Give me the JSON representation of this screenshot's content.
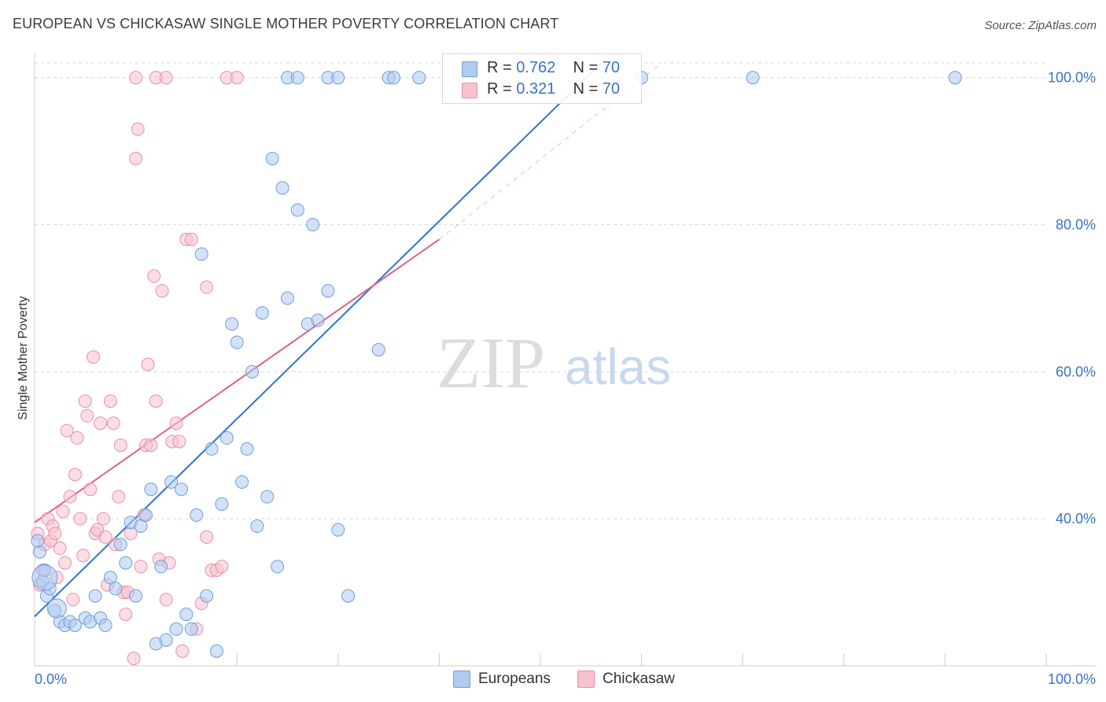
{
  "header": {
    "title": "EUROPEAN VS CHICKASAW SINGLE MOTHER POVERTY CORRELATION CHART",
    "source": "Source: ZipAtlas.com"
  },
  "watermark": {
    "zip": "ZIP",
    "atlas": "atlas"
  },
  "legend": {
    "rows": [
      {
        "r_label": "R =",
        "r_value": "0.762",
        "n_label": "N =",
        "n_value": "70"
      },
      {
        "r_label": "R =",
        "r_value": "0.321",
        "n_label": "N =",
        "n_value": "70"
      }
    ]
  },
  "bottom_legend": {
    "europeans": "Europeans",
    "chickasaw": "Chickasaw"
  },
  "colors": {
    "blue_fill": "#aecbf0",
    "blue_stroke": "#6f9fdc",
    "blue_line": "#2e72d2",
    "pink_fill": "#f7c1d0",
    "pink_stroke": "#e890a8",
    "pink_line": "#e0608a",
    "axis_label": "#3a72c4",
    "grid": "#d9d9d9"
  },
  "chart_data": {
    "type": "scatter",
    "title": "EUROPEAN VS CHICKASAW SINGLE MOTHER POVERTY CORRELATION CHART",
    "xlabel": "",
    "ylabel": "Single Mother Poverty",
    "xlim": [
      0,
      100
    ],
    "ylim": [
      20,
      102
    ],
    "x_tick_labels": [
      "0.0%",
      "100.0%"
    ],
    "y_tick_labels": [
      "40.0%",
      "60.0%",
      "80.0%",
      "100.0%"
    ],
    "y_ticks": [
      40,
      60,
      80,
      100
    ],
    "grid": true,
    "series": [
      {
        "name": "Europeans",
        "r": 0.762,
        "n": 70,
        "trend": {
          "x": [
            0,
            56
          ],
          "y": [
            26.7,
            102
          ]
        },
        "points": [
          [
            0.5,
            35.5
          ],
          [
            0.8,
            31.5
          ],
          [
            1,
            33
          ],
          [
            1.2,
            29.5
          ],
          [
            1.5,
            30.5
          ],
          [
            2,
            27.5
          ],
          [
            2.5,
            26
          ],
          [
            3,
            25.5
          ],
          [
            3.5,
            26
          ],
          [
            4,
            25.5
          ],
          [
            5,
            26.5
          ],
          [
            5.5,
            26
          ],
          [
            6,
            29.5
          ],
          [
            6.5,
            26.5
          ],
          [
            7,
            25.5
          ],
          [
            7.5,
            32
          ],
          [
            8,
            30.5
          ],
          [
            8.5,
            36.5
          ],
          [
            9,
            34
          ],
          [
            9.5,
            39.5
          ],
          [
            10,
            29.5
          ],
          [
            10.5,
            39
          ],
          [
            11,
            40.5
          ],
          [
            11.5,
            44
          ],
          [
            12,
            23
          ],
          [
            12.5,
            33.5
          ],
          [
            13,
            23.5
          ],
          [
            13.5,
            45
          ],
          [
            14,
            25
          ],
          [
            14.5,
            44
          ],
          [
            15,
            27
          ],
          [
            15.5,
            25
          ],
          [
            16,
            40.5
          ],
          [
            16.5,
            76
          ],
          [
            17,
            29.5
          ],
          [
            17.5,
            49.5
          ],
          [
            18,
            22
          ],
          [
            18.5,
            42
          ],
          [
            19,
            51
          ],
          [
            19.5,
            66.5
          ],
          [
            20,
            64
          ],
          [
            20.5,
            45
          ],
          [
            21,
            49.5
          ],
          [
            21.5,
            60
          ],
          [
            22,
            39
          ],
          [
            22.5,
            68
          ],
          [
            23,
            43
          ],
          [
            23.5,
            89
          ],
          [
            24,
            33.5
          ],
          [
            24.5,
            85
          ],
          [
            25,
            70
          ],
          [
            26,
            82
          ],
          [
            27,
            66.5
          ],
          [
            27.5,
            80
          ],
          [
            28,
            67
          ],
          [
            29,
            71
          ],
          [
            30,
            38.5
          ],
          [
            31,
            29.5
          ],
          [
            34,
            63
          ],
          [
            25,
            100
          ],
          [
            26,
            100
          ],
          [
            29,
            100
          ],
          [
            30,
            100
          ],
          [
            35,
            100
          ],
          [
            35.5,
            100
          ],
          [
            38,
            100
          ],
          [
            60,
            100
          ],
          [
            71,
            100
          ],
          [
            91,
            100
          ],
          [
            0.3,
            37
          ]
        ]
      },
      {
        "name": "Chickasaw",
        "r": 0.321,
        "n": 70,
        "trend": {
          "x": [
            0,
            40
          ],
          "y": [
            39.5,
            78
          ]
        },
        "points": [
          [
            0.3,
            38
          ],
          [
            0.5,
            31
          ],
          [
            0.8,
            33
          ],
          [
            1,
            36.5
          ],
          [
            1.3,
            40
          ],
          [
            1.6,
            37
          ],
          [
            1.8,
            39
          ],
          [
            2,
            38
          ],
          [
            2.2,
            32
          ],
          [
            2.5,
            36
          ],
          [
            2.8,
            41
          ],
          [
            3,
            34
          ],
          [
            3.2,
            52
          ],
          [
            3.5,
            43
          ],
          [
            3.8,
            29
          ],
          [
            4,
            46
          ],
          [
            4.2,
            51
          ],
          [
            4.5,
            40
          ],
          [
            4.8,
            35
          ],
          [
            5,
            56
          ],
          [
            5.2,
            54
          ],
          [
            5.5,
            44
          ],
          [
            5.8,
            62
          ],
          [
            6,
            38
          ],
          [
            6.2,
            38.5
          ],
          [
            6.5,
            53
          ],
          [
            6.8,
            40
          ],
          [
            7,
            37.5
          ],
          [
            7.2,
            31
          ],
          [
            7.5,
            56
          ],
          [
            7.8,
            53
          ],
          [
            8,
            36.5
          ],
          [
            8.3,
            43
          ],
          [
            8.5,
            50
          ],
          [
            8.8,
            30
          ],
          [
            9,
            27
          ],
          [
            9.2,
            30
          ],
          [
            9.5,
            38
          ],
          [
            9.8,
            21
          ],
          [
            10,
            89
          ],
          [
            10.2,
            93
          ],
          [
            10.5,
            33.5
          ],
          [
            10.8,
            40.5
          ],
          [
            11,
            50
          ],
          [
            11.2,
            61
          ],
          [
            11.5,
            50
          ],
          [
            11.8,
            73
          ],
          [
            12,
            56
          ],
          [
            12.3,
            34.5
          ],
          [
            12.6,
            71
          ],
          [
            13,
            29
          ],
          [
            13.3,
            34
          ],
          [
            13.6,
            50.5
          ],
          [
            14,
            53
          ],
          [
            14.3,
            50.5
          ],
          [
            14.6,
            22
          ],
          [
            15,
            78
          ],
          [
            15.5,
            78
          ],
          [
            16,
            25
          ],
          [
            16.5,
            28.5
          ],
          [
            17,
            71.5
          ],
          [
            17.5,
            33
          ],
          [
            18,
            33
          ],
          [
            18.5,
            33.5
          ],
          [
            12,
            100
          ],
          [
            13,
            100
          ],
          [
            19,
            100
          ],
          [
            20,
            100
          ],
          [
            10,
            100
          ],
          [
            17,
            37.5
          ]
        ]
      }
    ]
  }
}
